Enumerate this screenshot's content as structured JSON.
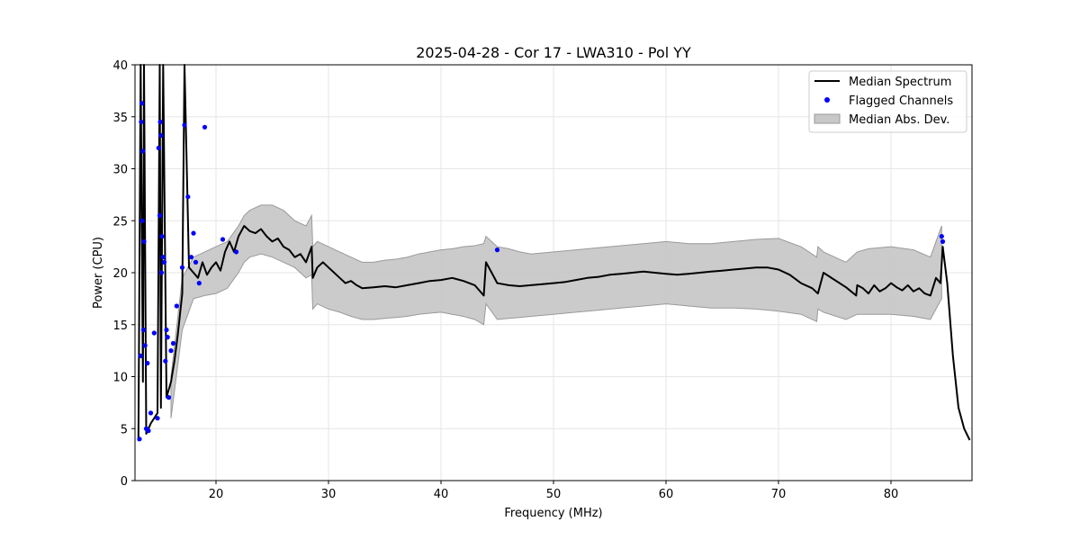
{
  "chart_data": {
    "type": "line",
    "title": "2025-04-28 - Cor 17 - LWA310 - Pol YY",
    "xlabel": "Frequency (MHz)",
    "ylabel": "Power (CPU)",
    "xlim": [
      12.8,
      87.2
    ],
    "ylim": [
      0,
      40
    ],
    "xticks": [
      20,
      30,
      40,
      50,
      60,
      70,
      80
    ],
    "yticks": [
      0,
      5,
      10,
      15,
      20,
      25,
      30,
      35,
      40
    ],
    "grid": true,
    "legend_position": "top-right",
    "legend": [
      "Median Spectrum",
      "Flagged Channels",
      "Median Abs. Dev."
    ],
    "colors": {
      "median": "#000000",
      "flagged": "#0000ff",
      "mad_fill": "#c8c8c8",
      "mad_edge": "#9a9a9a"
    },
    "series": [
      {
        "name": "Median Spectrum",
        "style": "line",
        "x": [
          13.1,
          13.3,
          13.5,
          13.6,
          13.8,
          14.0,
          14.2,
          14.5,
          14.8,
          15.0,
          15.1,
          15.3,
          15.6,
          16.0,
          16.3,
          16.6,
          17.0,
          17.2,
          17.6,
          18.0,
          18.4,
          18.8,
          19.2,
          19.6,
          20.0,
          20.4,
          20.8,
          21.2,
          21.6,
          22.0,
          22.5,
          23.0,
          23.5,
          24.0,
          24.5,
          25.0,
          25.5,
          26.0,
          26.5,
          27.0,
          27.5,
          28.0,
          28.5,
          28.6,
          29.0,
          29.5,
          30.0,
          30.5,
          31.0,
          31.5,
          32.0,
          32.5,
          33.0,
          34.0,
          35.0,
          36.0,
          37.0,
          38.0,
          39.0,
          40.0,
          41.0,
          42.0,
          43.0,
          43.8,
          44.0,
          44.5,
          45.0,
          45.5,
          46.0,
          47.0,
          48.0,
          49.0,
          50.0,
          51.0,
          52.0,
          53.0,
          54.0,
          55.0,
          56.0,
          57.0,
          58.0,
          59.0,
          60.0,
          61.0,
          62.0,
          63.0,
          64.0,
          65.0,
          66.0,
          67.0,
          68.0,
          69.0,
          70.0,
          71.0,
          72.0,
          73.0,
          73.5,
          74.0,
          75.0,
          76.0,
          76.9,
          77.0,
          77.5,
          78.0,
          78.5,
          79.0,
          79.5,
          80.0,
          80.5,
          81.0,
          81.5,
          82.0,
          82.5,
          83.0,
          83.5,
          84.0,
          84.4,
          84.6,
          85.0,
          85.5,
          86.0,
          86.5,
          87.0
        ],
        "values": [
          3.8,
          40,
          9.5,
          40,
          4.5,
          5.0,
          5.5,
          6.0,
          6.5,
          40,
          7.0,
          40,
          8.0,
          9.5,
          11.5,
          14.0,
          18.0,
          40,
          20.5,
          20.0,
          19.5,
          21.0,
          19.8,
          20.5,
          21.0,
          20.2,
          22.0,
          23.0,
          22.0,
          23.5,
          24.5,
          24.0,
          23.8,
          24.2,
          23.5,
          23.0,
          23.3,
          22.5,
          22.2,
          21.5,
          21.8,
          21.0,
          22.5,
          19.5,
          20.5,
          21.0,
          20.5,
          20.0,
          19.5,
          19.0,
          19.2,
          18.8,
          18.5,
          18.6,
          18.7,
          18.6,
          18.8,
          19.0,
          19.2,
          19.3,
          19.5,
          19.2,
          18.8,
          17.8,
          21.0,
          20.0,
          19.0,
          18.9,
          18.8,
          18.7,
          18.8,
          18.9,
          19.0,
          19.1,
          19.3,
          19.5,
          19.6,
          19.8,
          19.9,
          20.0,
          20.1,
          20.0,
          19.9,
          19.8,
          19.9,
          20.0,
          20.1,
          20.2,
          20.3,
          20.4,
          20.5,
          20.5,
          20.3,
          19.8,
          19.0,
          18.5,
          18.0,
          20.0,
          19.3,
          18.6,
          17.8,
          18.8,
          18.5,
          18.0,
          18.8,
          18.2,
          18.5,
          19.0,
          18.6,
          18.3,
          18.8,
          18.2,
          18.5,
          18.0,
          17.8,
          19.5,
          19.0,
          22.5,
          19.0,
          12.0,
          7.0,
          5.0,
          3.9
        ]
      },
      {
        "name": "Flagged Channels",
        "style": "scatter",
        "x": [
          13.2,
          13.3,
          13.35,
          13.4,
          13.45,
          13.5,
          13.55,
          13.6,
          13.7,
          13.8,
          13.9,
          14.0,
          14.2,
          14.5,
          14.8,
          14.9,
          15.0,
          15.05,
          15.1,
          15.15,
          15.2,
          15.3,
          15.4,
          15.5,
          15.6,
          15.7,
          15.8,
          16.0,
          16.2,
          16.5,
          17.0,
          17.2,
          17.5,
          17.8,
          18.0,
          18.2,
          18.5,
          19.0,
          20.6,
          21.8,
          45.0,
          84.5,
          84.6
        ],
        "values": [
          4.0,
          12.0,
          34.5,
          36.3,
          25.0,
          31.7,
          14.5,
          23.0,
          13.0,
          5.0,
          11.3,
          4.8,
          6.5,
          14.2,
          6.0,
          32.0,
          25.5,
          34.5,
          33.2,
          20.0,
          23.5,
          21.5,
          21.0,
          11.5,
          14.5,
          13.8,
          8.0,
          12.5,
          13.2,
          16.8,
          20.5,
          34.2,
          27.3,
          21.5,
          23.8,
          21.0,
          19.0,
          34.0,
          23.2,
          22.0,
          22.2,
          23.5,
          23.0
        ]
      }
    ],
    "band": {
      "name": "Median Abs. Dev.",
      "x": [
        16.0,
        17.0,
        18.0,
        19.0,
        20.0,
        21.0,
        22.0,
        22.5,
        23.0,
        24.0,
        25.0,
        26.0,
        27.0,
        28.0,
        28.5,
        28.6,
        29.0,
        30.0,
        31.0,
        32.0,
        33.0,
        34.0,
        35.0,
        36.0,
        37.0,
        38.0,
        39.0,
        40.0,
        41.0,
        42.0,
        43.0,
        43.8,
        44.0,
        45.0,
        46.0,
        47.0,
        48.0,
        50.0,
        52.0,
        54.0,
        56.0,
        58.0,
        60.0,
        62.0,
        64.0,
        66.0,
        68.0,
        70.0,
        72.0,
        73.4,
        73.5,
        74.0,
        76.0,
        77.0,
        78.0,
        80.0,
        82.0,
        83.5,
        84.0,
        84.5
      ],
      "upper": [
        10.0,
        19.5,
        21.5,
        22.0,
        22.5,
        23.0,
        24.5,
        25.5,
        26.0,
        26.5,
        26.5,
        26.0,
        25.0,
        24.5,
        25.5,
        22.5,
        23.0,
        22.5,
        22.0,
        21.5,
        21.0,
        21.0,
        21.2,
        21.3,
        21.5,
        21.8,
        22.0,
        22.2,
        22.3,
        22.5,
        22.6,
        22.8,
        23.5,
        22.5,
        22.3,
        22.0,
        21.8,
        22.0,
        22.2,
        22.4,
        22.6,
        22.8,
        23.0,
        22.8,
        22.8,
        23.0,
        23.2,
        23.3,
        22.5,
        21.5,
        22.5,
        22.0,
        21.0,
        22.0,
        22.3,
        22.5,
        22.2,
        21.5,
        23.0,
        24.5
      ],
      "lower": [
        6.0,
        14.5,
        17.5,
        17.8,
        18.0,
        18.5,
        20.0,
        21.0,
        21.5,
        21.8,
        21.5,
        21.0,
        20.5,
        19.5,
        19.8,
        16.5,
        17.0,
        16.5,
        16.2,
        15.8,
        15.5,
        15.5,
        15.6,
        15.7,
        15.8,
        16.0,
        16.1,
        16.2,
        16.0,
        15.8,
        15.5,
        15.0,
        17.0,
        15.5,
        15.6,
        15.7,
        15.8,
        16.0,
        16.2,
        16.4,
        16.6,
        16.8,
        17.0,
        16.8,
        16.6,
        16.6,
        16.5,
        16.3,
        16.0,
        15.3,
        16.5,
        16.2,
        15.5,
        16.0,
        16.0,
        16.0,
        15.8,
        15.5,
        16.5,
        17.5
      ]
    }
  }
}
